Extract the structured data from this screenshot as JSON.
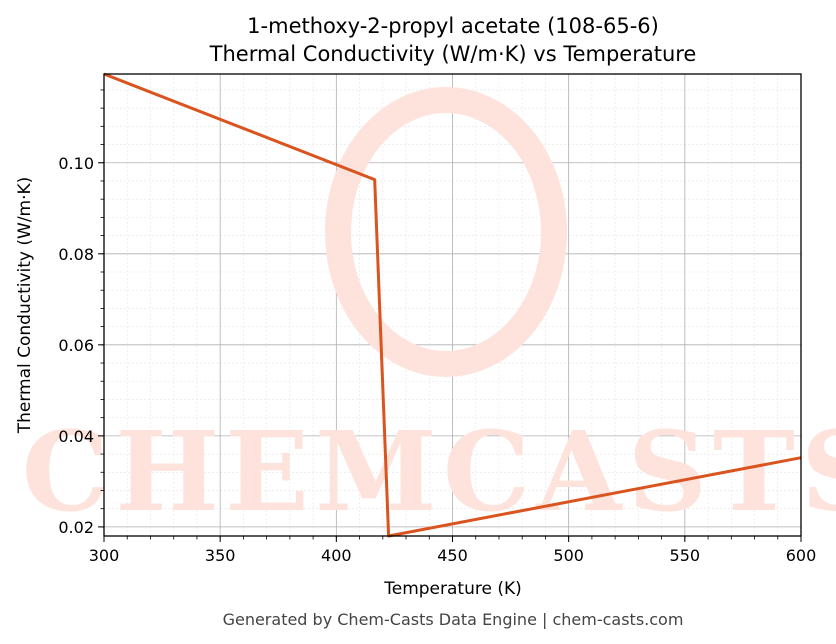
{
  "chart_data": {
    "type": "line",
    "title": "1-methoxy-2-propyl acetate (108-65-6)",
    "subtitle": "Thermal Conductivity (W/m·K) vs Temperature",
    "xlabel": "Temperature (K)",
    "ylabel": "Thermal Conductivity (W/m·K)",
    "xlim": [
      300,
      600
    ],
    "ylim": [
      0.018,
      0.1195
    ],
    "xticks": [
      300,
      350,
      400,
      450,
      500,
      550,
      600
    ],
    "yticks": [
      0.02,
      0.04,
      0.06,
      0.08,
      0.1
    ],
    "ytick_labels": [
      "0.02",
      "0.04",
      "0.06",
      "0.08",
      "0.10"
    ],
    "grid": true,
    "minor_grid": true,
    "series": [
      {
        "color": "#d9541e",
        "x": [
          300,
          416.5,
          422.5,
          600
        ],
        "y": [
          0.1195,
          0.0963,
          0.018,
          0.0352
        ]
      }
    ],
    "watermark": "CHEMCASTS",
    "footer": "Generated by Chem-Casts Data Engine | chem-casts.com"
  }
}
